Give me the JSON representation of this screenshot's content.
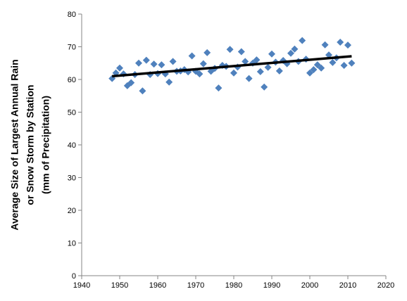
{
  "chart_data": {
    "type": "scatter",
    "title": "",
    "xlabel": "",
    "ylabel_lines": [
      "Average Size of Largest Annual Rain",
      "or Snow Storm by Station",
      "(mm of Precipitation)"
    ],
    "xlim": [
      1940,
      2020
    ],
    "ylim": [
      0,
      80
    ],
    "x_ticks": [
      1940,
      1950,
      1960,
      1970,
      1980,
      1990,
      2000,
      2010,
      2020
    ],
    "y_ticks": [
      0,
      10,
      20,
      30,
      40,
      50,
      60,
      70,
      80
    ],
    "grid": false,
    "legend": "none",
    "marker_color": "#4F81BD",
    "trend_color": "#000000",
    "series": [
      {
        "points": [
          [
            1948,
            60.3
          ],
          [
            1949,
            62.0
          ],
          [
            1950,
            63.5
          ],
          [
            1951,
            61.7
          ],
          [
            1952,
            58.1
          ],
          [
            1953,
            59.0
          ],
          [
            1954,
            61.5
          ],
          [
            1955,
            65.0
          ],
          [
            1956,
            56.5
          ],
          [
            1957,
            65.9
          ],
          [
            1958,
            61.5
          ],
          [
            1959,
            64.7
          ],
          [
            1960,
            61.8
          ],
          [
            1961,
            64.5
          ],
          [
            1962,
            61.7
          ],
          [
            1963,
            59.2
          ],
          [
            1964,
            65.5
          ],
          [
            1965,
            62.5
          ],
          [
            1966,
            62.6
          ],
          [
            1967,
            63.0
          ],
          [
            1968,
            62.3
          ],
          [
            1969,
            67.2
          ],
          [
            1970,
            62.5
          ],
          [
            1971,
            61.7
          ],
          [
            1972,
            64.8
          ],
          [
            1973,
            68.2
          ],
          [
            1974,
            62.5
          ],
          [
            1975,
            63.4
          ],
          [
            1976,
            57.4
          ],
          [
            1977,
            64.3
          ],
          [
            1978,
            64.0
          ],
          [
            1979,
            69.2
          ],
          [
            1980,
            62.0
          ],
          [
            1981,
            63.8
          ],
          [
            1982,
            68.5
          ],
          [
            1983,
            65.5
          ],
          [
            1984,
            60.3
          ],
          [
            1985,
            65.0
          ],
          [
            1986,
            66.0
          ],
          [
            1987,
            62.4
          ],
          [
            1988,
            57.7
          ],
          [
            1989,
            63.7
          ],
          [
            1990,
            67.8
          ],
          [
            1991,
            65.3
          ],
          [
            1992,
            62.6
          ],
          [
            1993,
            65.8
          ],
          [
            1994,
            64.8
          ],
          [
            1995,
            68.0
          ],
          [
            1996,
            69.3
          ],
          [
            1997,
            65.5
          ],
          [
            1998,
            71.9
          ],
          [
            1999,
            66.2
          ],
          [
            2000,
            62.0
          ],
          [
            2001,
            63.0
          ],
          [
            2002,
            64.5
          ],
          [
            2003,
            63.5
          ],
          [
            2004,
            70.6
          ],
          [
            2005,
            67.5
          ],
          [
            2006,
            65.2
          ],
          [
            2007,
            66.6
          ],
          [
            2008,
            71.4
          ],
          [
            2009,
            64.3
          ],
          [
            2010,
            70.5
          ],
          [
            2011,
            65.0
          ]
        ]
      }
    ],
    "trendline": {
      "x": [
        1948,
        2011
      ],
      "y": [
        61.0,
        67.1
      ]
    }
  }
}
